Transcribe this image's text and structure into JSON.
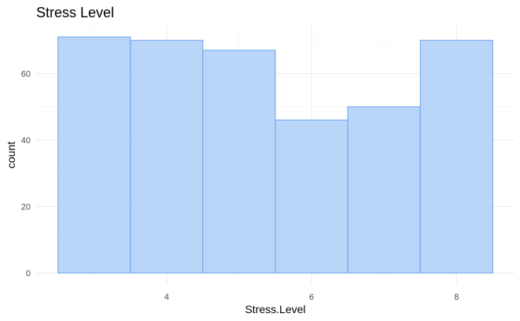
{
  "chart_data": {
    "type": "bar",
    "title": "Stress Level",
    "xlabel": "Stress.Level",
    "ylabel": "count",
    "bins": [
      {
        "x_min": 2.5,
        "x_max": 3.5,
        "count": 71
      },
      {
        "x_min": 3.5,
        "x_max": 4.5,
        "count": 70
      },
      {
        "x_min": 4.5,
        "x_max": 5.5,
        "count": 67
      },
      {
        "x_min": 5.5,
        "x_max": 6.5,
        "count": 46
      },
      {
        "x_min": 6.5,
        "x_max": 7.5,
        "count": 50
      },
      {
        "x_min": 7.5,
        "x_max": 8.5,
        "count": 70
      }
    ],
    "xlim": [
      2.2,
      8.8
    ],
    "ylim": [
      -3.55,
      74.55
    ],
    "x_ticks": [
      4,
      6,
      8
    ],
    "x_minor_ticks": [
      3,
      5,
      7
    ],
    "y_ticks": [
      0,
      20,
      40,
      60
    ],
    "y_minor_ticks": [
      10,
      30,
      50,
      70
    ],
    "grid": true,
    "colors": {
      "bar_fill": "#b3d3f8",
      "bar_stroke": "#6aa3e8",
      "grid_major": "#ebebeb",
      "grid_minor": "#f4f4f4"
    }
  }
}
